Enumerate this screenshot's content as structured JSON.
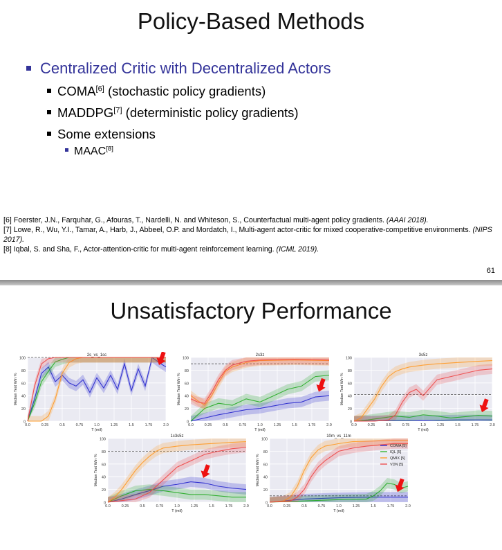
{
  "slide1": {
    "title": "Policy-Based Methods",
    "bullet1": "Centralized Critic with Decentralized Actors",
    "coma": {
      "name": "COMA",
      "ref": "[6]",
      "desc": " (stochastic policy gradients)"
    },
    "maddpg": {
      "name": "MADDPG",
      "ref": "[7]",
      "desc": " (deterministic policy gradients)"
    },
    "extensions": "Some extensions",
    "maac": {
      "name": "MAAC",
      "ref": "[8]"
    },
    "refs": [
      {
        "num": "[6]",
        "text": "Foerster, J.N., Farquhar, G., Afouras, T., Nardelli, N. and Whiteson, S., Counterfactual multi-agent policy gradients.",
        "venue": "(AAAI 2018)."
      },
      {
        "num": "[7]",
        "text": "Lowe, R., Wu, Y.I., Tamar, A., Harb, J., Abbeel, O.P. and Mordatch, I., Multi-agent actor-critic for mixed cooperative-competitive environments.",
        "venue": "(NIPS 2017)."
      },
      {
        "num": "[8]",
        "text": "Iqbal, S. and Sha, F., Actor-attention-critic for multi-agent reinforcement learning.",
        "venue": "(ICML 2019)."
      }
    ],
    "page_number": "61"
  },
  "slide2": {
    "title": "Unsatisfactory Performance"
  },
  "colors": {
    "coma": "#2222cc",
    "iql": "#22aa22",
    "qmix": "#ff9922",
    "vdn": "#ee4444",
    "accent": "#333399",
    "arrow": "#ee1111"
  },
  "chart_data": [
    {
      "type": "line",
      "title": "2s_vs_1sc",
      "xlabel": "T (mil)",
      "ylabel": "Median Test Win %",
      "xlim": [
        0,
        2.0
      ],
      "ylim": [
        0,
        100
      ],
      "xticks": [
        "0.0",
        "0.25",
        "0.5",
        "0.75",
        "1.0",
        "1.25",
        "1.5",
        "1.75",
        "2.0"
      ],
      "yticks": [
        "0",
        "20",
        "40",
        "60",
        "80",
        "100"
      ],
      "series": [
        {
          "key": "coma",
          "x": [
            0,
            0.1,
            0.2,
            0.3,
            0.4,
            0.5,
            0.6,
            0.7,
            0.8,
            0.9,
            1.0,
            1.1,
            1.2,
            1.3,
            1.4,
            1.5,
            1.6,
            1.7,
            1.8,
            1.9,
            2.0
          ],
          "y": [
            0,
            35,
            75,
            85,
            62,
            72,
            60,
            55,
            65,
            45,
            68,
            52,
            72,
            50,
            90,
            48,
            82,
            55,
            100,
            92,
            85
          ]
        },
        {
          "key": "iql",
          "x": [
            0,
            0.1,
            0.2,
            0.3,
            0.4,
            0.5,
            0.6,
            0.8,
            1.0,
            1.5,
            2.0
          ],
          "y": [
            0,
            28,
            62,
            78,
            93,
            97,
            100,
            100,
            100,
            100,
            100
          ]
        },
        {
          "key": "qmix",
          "x": [
            0,
            0.1,
            0.2,
            0.3,
            0.4,
            0.5,
            0.6,
            0.7,
            0.8,
            1.0,
            1.5,
            2.0
          ],
          "y": [
            0,
            0,
            0,
            8,
            35,
            75,
            92,
            98,
            100,
            100,
            100,
            100
          ]
        },
        {
          "key": "vdn",
          "x": [
            0,
            0.1,
            0.2,
            0.3,
            0.4,
            0.6,
            1.0,
            2.0
          ],
          "y": [
            0,
            55,
            90,
            98,
            100,
            100,
            100,
            100
          ]
        }
      ],
      "dashed_y": 100,
      "arrow": {
        "x": 1.9,
        "y": 88
      }
    },
    {
      "type": "line",
      "title": "2s3z",
      "xlabel": "T (mil)",
      "ylabel": "Median Test Win %",
      "xlim": [
        0,
        2.0
      ],
      "ylim": [
        0,
        100
      ],
      "xticks": [
        "0.0",
        "0.25",
        "0.5",
        "0.75",
        "1.0",
        "1.25",
        "1.5",
        "1.75",
        "2.0"
      ],
      "yticks": [
        "0",
        "20",
        "40",
        "60",
        "80",
        "100"
      ],
      "series": [
        {
          "key": "coma",
          "x": [
            0,
            0.2,
            0.4,
            0.6,
            0.8,
            1.0,
            1.2,
            1.4,
            1.6,
            1.8,
            2.0
          ],
          "y": [
            0,
            5,
            10,
            14,
            18,
            20,
            24,
            28,
            30,
            38,
            40
          ]
        },
        {
          "key": "iql",
          "x": [
            0,
            0.2,
            0.4,
            0.6,
            0.8,
            1.0,
            1.2,
            1.4,
            1.6,
            1.8,
            2.0
          ],
          "y": [
            0,
            20,
            28,
            25,
            35,
            30,
            40,
            50,
            55,
            70,
            72
          ]
        },
        {
          "key": "qmix",
          "x": [
            0,
            0.1,
            0.2,
            0.3,
            0.4,
            0.5,
            0.6,
            0.8,
            1.0,
            1.5,
            2.0
          ],
          "y": [
            40,
            32,
            25,
            40,
            60,
            78,
            85,
            92,
            95,
            96,
            95
          ]
        },
        {
          "key": "vdn",
          "x": [
            0,
            0.1,
            0.2,
            0.3,
            0.4,
            0.5,
            0.6,
            0.8,
            1.0,
            1.5,
            2.0
          ],
          "y": [
            35,
            30,
            28,
            45,
            65,
            80,
            88,
            94,
            96,
            97,
            96
          ]
        }
      ],
      "dashed_y": 90,
      "arrow": {
        "x": 1.85,
        "y": 46
      }
    },
    {
      "type": "line",
      "title": "3s5z",
      "xlabel": "T (mil)",
      "ylabel": "Median Test Win %",
      "xlim": [
        0,
        2.0
      ],
      "ylim": [
        0,
        100
      ],
      "xticks": [
        "0.0",
        "0.25",
        "0.5",
        "0.75",
        "1.0",
        "1.25",
        "1.5",
        "1.75",
        "2.0"
      ],
      "yticks": [
        "0",
        "20",
        "40",
        "60",
        "80",
        "100"
      ],
      "series": [
        {
          "key": "coma",
          "x": [
            0,
            0.5,
            1.0,
            1.5,
            2.0
          ],
          "y": [
            0,
            1,
            1,
            2,
            2
          ]
        },
        {
          "key": "iql",
          "x": [
            0,
            0.2,
            0.4,
            0.6,
            0.8,
            1.0,
            1.2,
            1.4,
            1.6,
            1.8,
            2.0
          ],
          "y": [
            0,
            2,
            5,
            8,
            6,
            10,
            8,
            5,
            7,
            9,
            8
          ]
        },
        {
          "key": "qmix",
          "x": [
            0,
            0.1,
            0.2,
            0.3,
            0.4,
            0.5,
            0.6,
            0.7,
            0.8,
            1.0,
            1.2,
            1.5,
            1.8,
            2.0
          ],
          "y": [
            0,
            5,
            20,
            35,
            55,
            70,
            78,
            82,
            85,
            88,
            90,
            92,
            94,
            95
          ]
        },
        {
          "key": "vdn",
          "x": [
            0,
            0.3,
            0.5,
            0.6,
            0.7,
            0.8,
            0.9,
            1.0,
            1.2,
            1.4,
            1.6,
            1.8,
            2.0
          ],
          "y": [
            0,
            0,
            2,
            10,
            30,
            45,
            50,
            40,
            65,
            70,
            75,
            80,
            82
          ]
        }
      ],
      "dashed_y": 42,
      "arrow": {
        "x": 1.85,
        "y": 14
      }
    },
    {
      "type": "line",
      "title": "1c3s5z",
      "xlabel": "T (mil)",
      "ylabel": "Median Test Win %",
      "xlim": [
        0,
        2.0
      ],
      "ylim": [
        0,
        100
      ],
      "xticks": [
        "0.0",
        "0.25",
        "0.5",
        "0.75",
        "1.0",
        "1.25",
        "1.5",
        "1.75",
        "2.0"
      ],
      "yticks": [
        "0",
        "20",
        "40",
        "60",
        "80",
        "100"
      ],
      "series": [
        {
          "key": "coma",
          "x": [
            0,
            0.2,
            0.4,
            0.6,
            0.8,
            1.0,
            1.2,
            1.4,
            1.6,
            1.8,
            2.0
          ],
          "y": [
            0,
            5,
            12,
            18,
            25,
            28,
            32,
            30,
            25,
            22,
            20
          ]
        },
        {
          "key": "iql",
          "x": [
            0,
            0.2,
            0.4,
            0.6,
            0.8,
            1.0,
            1.2,
            1.4,
            1.6,
            1.8,
            2.0
          ],
          "y": [
            0,
            10,
            18,
            20,
            18,
            15,
            12,
            12,
            10,
            8,
            8
          ]
        },
        {
          "key": "qmix",
          "x": [
            0,
            0.1,
            0.2,
            0.3,
            0.4,
            0.5,
            0.6,
            0.7,
            0.8,
            1.0,
            1.2,
            1.5,
            1.8,
            2.0
          ],
          "y": [
            0,
            8,
            20,
            35,
            50,
            62,
            72,
            80,
            85,
            88,
            90,
            92,
            94,
            95
          ]
        },
        {
          "key": "vdn",
          "x": [
            0,
            0.4,
            0.6,
            0.8,
            1.0,
            1.2,
            1.4,
            1.6,
            1.8,
            2.0
          ],
          "y": [
            0,
            5,
            15,
            35,
            55,
            65,
            75,
            80,
            84,
            86
          ]
        }
      ],
      "dashed_y": 80,
      "arrow": {
        "x": 1.38,
        "y": 38
      }
    },
    {
      "type": "line",
      "title": "10m_vs_11m",
      "xlabel": "T (mil)",
      "ylabel": "Median Test Win %",
      "xlim": [
        0,
        2.0
      ],
      "ylim": [
        0,
        100
      ],
      "xticks": [
        "0.0",
        "0.25",
        "0.5",
        "0.75",
        "1.0",
        "1.25",
        "1.5",
        "1.75",
        "2.0"
      ],
      "yticks": [
        "0",
        "20",
        "40",
        "60",
        "80",
        "100"
      ],
      "series": [
        {
          "key": "coma",
          "x": [
            0,
            0.5,
            1.0,
            1.5,
            1.8,
            2.0
          ],
          "y": [
            0,
            5,
            7,
            8,
            8,
            8
          ]
        },
        {
          "key": "iql",
          "x": [
            0,
            0.5,
            1.0,
            1.4,
            1.5,
            1.6,
            1.7,
            1.8,
            1.9,
            2.0
          ],
          "y": [
            0,
            2,
            4,
            5,
            10,
            18,
            30,
            28,
            22,
            25
          ]
        },
        {
          "key": "qmix",
          "x": [
            0,
            0.2,
            0.3,
            0.4,
            0.5,
            0.6,
            0.7,
            0.8,
            1.0,
            1.2,
            1.5,
            1.8,
            2.0
          ],
          "y": [
            0,
            2,
            8,
            25,
            50,
            70,
            82,
            88,
            92,
            95,
            96,
            97,
            97
          ]
        },
        {
          "key": "vdn",
          "x": [
            0,
            0.3,
            0.4,
            0.5,
            0.6,
            0.7,
            0.8,
            1.0,
            1.2,
            1.4,
            1.6,
            1.8,
            2.0
          ],
          "y": [
            0,
            2,
            8,
            20,
            40,
            55,
            65,
            80,
            85,
            88,
            90,
            92,
            92
          ]
        }
      ],
      "dashed_y": 10,
      "arrow": {
        "x": 1.85,
        "y": 16
      },
      "legend": [
        {
          "key": "coma",
          "label": "COMA [5]"
        },
        {
          "key": "iql",
          "label": "IQL [5]"
        },
        {
          "key": "qmix",
          "label": "QMIX [5]"
        },
        {
          "key": "vdn",
          "label": "VDN [5]"
        }
      ],
      "legend_position": "top-right"
    }
  ]
}
